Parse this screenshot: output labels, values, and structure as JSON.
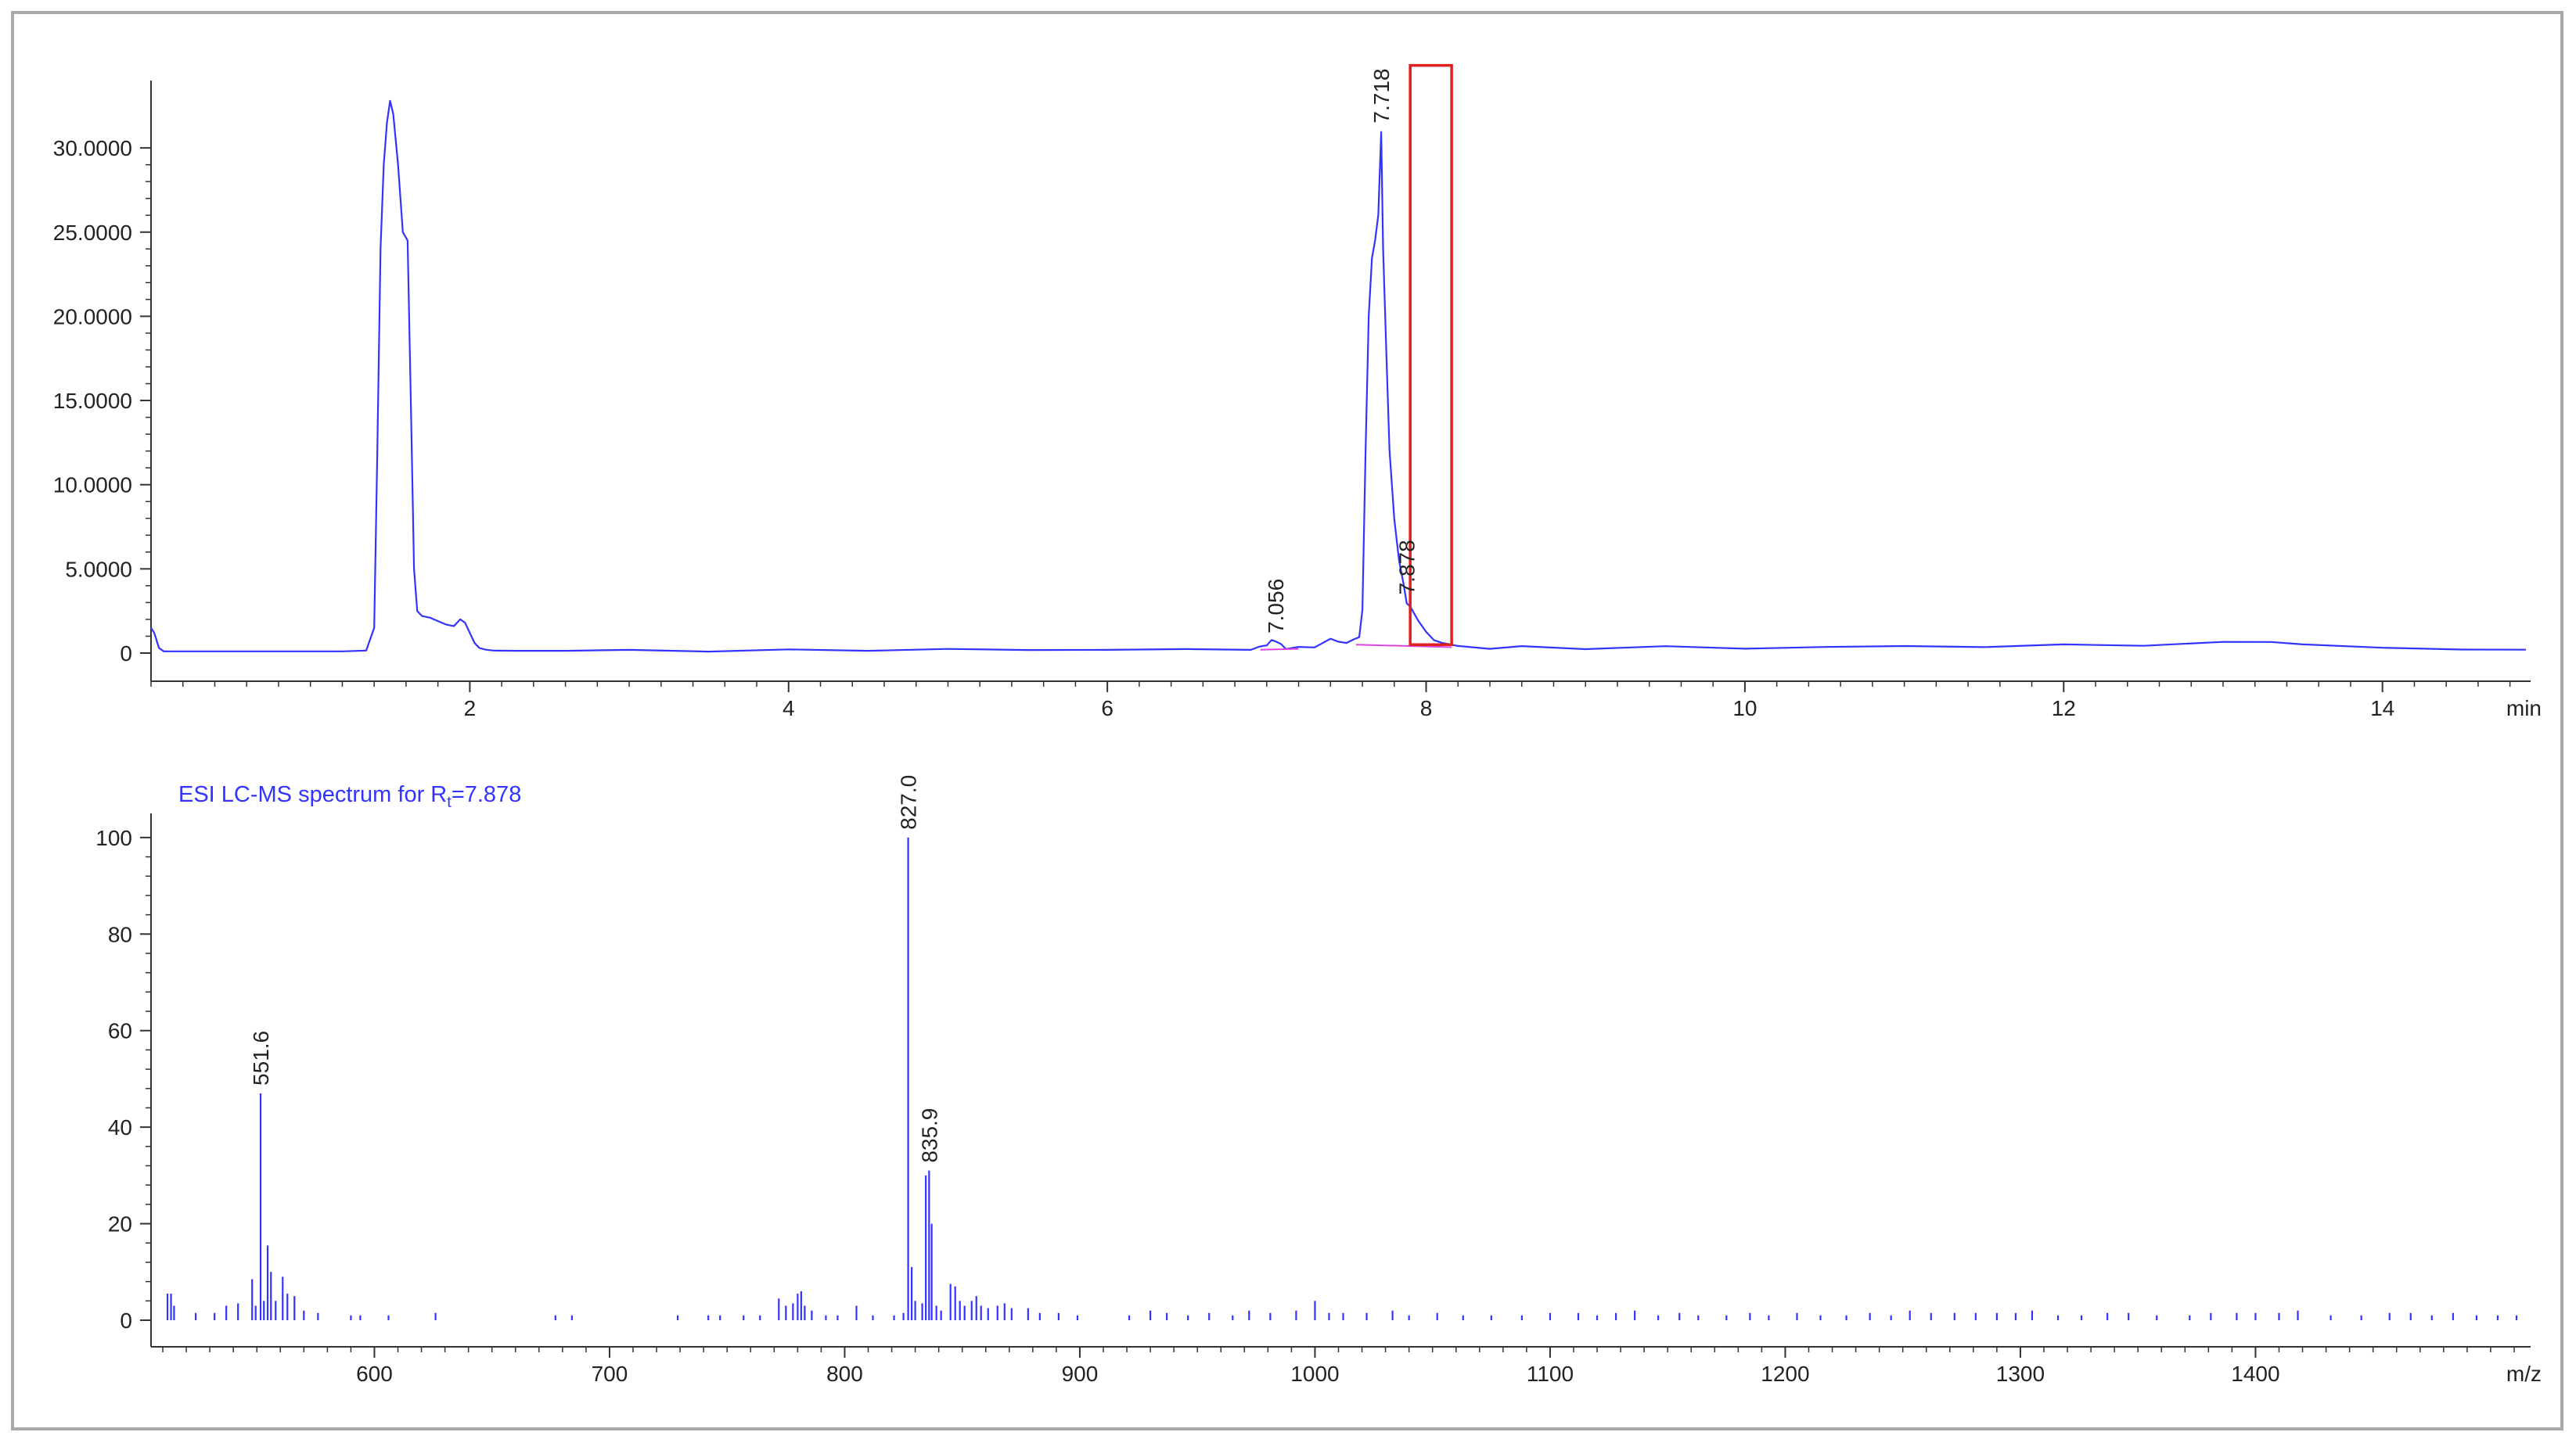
{
  "chart_data": [
    {
      "type": "line",
      "title": "",
      "xlabel": "min",
      "ylabel": "",
      "xlim": [
        0,
        14.9
      ],
      "ylim": [
        0,
        34
      ],
      "x_ticks": [
        2,
        4,
        6,
        8,
        10,
        12,
        14
      ],
      "x_tick_labels": [
        "2",
        "4",
        "6",
        "8",
        "10",
        "12",
        "14"
      ],
      "y_ticks": [
        0,
        5,
        10,
        15,
        20,
        25,
        30
      ],
      "y_tick_labels": [
        "0",
        "5.0000",
        "10.0000",
        "15.0000",
        "20.0000",
        "25.0000",
        "30.0000"
      ],
      "grid": false,
      "colors": {
        "trace": "#3333ff",
        "baseline": "#dd44dd",
        "highlight_box": "#e02020"
      },
      "series": [
        {
          "x": [
            0.0,
            0.02,
            0.05,
            0.08,
            0.2,
            0.5,
            0.8,
            1.0,
            1.2,
            1.35,
            1.4,
            1.42,
            1.44,
            1.46,
            1.48,
            1.5,
            1.52,
            1.55,
            1.58,
            1.61,
            1.63,
            1.65,
            1.67,
            1.7,
            1.75,
            1.8,
            1.85,
            1.9,
            1.94,
            1.97,
            2.0,
            2.03,
            2.06,
            2.1,
            2.15,
            2.3,
            2.6,
            3.0,
            3.5,
            4.0,
            4.5,
            5.0,
            5.5,
            6.0,
            6.5,
            6.9,
            6.95,
            6.98,
            7.0,
            7.03,
            7.056,
            7.09,
            7.12,
            7.2,
            7.3,
            7.4,
            7.45,
            7.5,
            7.55,
            7.58,
            7.6,
            7.62,
            7.64,
            7.66,
            7.68,
            7.7,
            7.718,
            7.73,
            7.75,
            7.77,
            7.8,
            7.83,
            7.86,
            7.878,
            7.9,
            7.95,
            8.0,
            8.05,
            8.1,
            8.2,
            8.4,
            8.6,
            9.0,
            9.5,
            10.0,
            10.5,
            11.0,
            11.5,
            12.0,
            12.5,
            13.0,
            13.3,
            13.5,
            14.0,
            14.5,
            14.9
          ],
          "y": [
            1.5,
            1.2,
            0.3,
            0.1,
            0.1,
            0.1,
            0.1,
            0.1,
            0.1,
            0.15,
            1.5,
            12.0,
            24.0,
            29.0,
            31.5,
            32.8,
            32.0,
            29.0,
            25.0,
            24.5,
            15.0,
            5.0,
            2.5,
            2.2,
            2.1,
            1.9,
            1.7,
            1.6,
            2.0,
            1.8,
            1.2,
            0.6,
            0.3,
            0.2,
            0.15,
            0.15,
            0.15,
            0.15,
            0.15,
            0.15,
            0.2,
            0.2,
            0.2,
            0.2,
            0.2,
            0.25,
            0.3,
            0.5,
            0.4,
            0.8,
            0.7,
            0.5,
            0.3,
            0.3,
            0.4,
            0.8,
            0.7,
            0.6,
            0.8,
            1.0,
            2.5,
            12.0,
            20.0,
            23.5,
            24.5,
            26.0,
            31.0,
            24.0,
            18.0,
            12.0,
            8.0,
            5.5,
            4.0,
            3.0,
            2.7,
            2.0,
            1.2,
            0.8,
            0.6,
            0.4,
            0.3,
            0.35,
            0.3,
            0.35,
            0.3,
            0.35,
            0.4,
            0.4,
            0.45,
            0.5,
            0.6,
            0.7,
            0.5,
            0.3,
            0.25,
            0.2
          ]
        }
      ],
      "annotations": [
        {
          "text": "7.056",
          "x": 7.056,
          "y": 0.7
        },
        {
          "text": "7.718",
          "x": 7.718,
          "y": 31.0
        },
        {
          "text": "7.878",
          "x": 7.878,
          "y": 3.0
        }
      ],
      "highlight_region": {
        "x": [
          7.9,
          8.16
        ],
        "y": [
          0.5,
          34.9
        ]
      }
    },
    {
      "type": "bar",
      "title_main": "ESI LC-MS spectrum for R",
      "title_sub": "t",
      "title_tail": "=7.878",
      "xlabel": "m/z",
      "ylabel": "",
      "xlim": [
        505,
        1515
      ],
      "ylim": [
        0,
        105
      ],
      "x_ticks": [
        600,
        700,
        800,
        900,
        1000,
        1100,
        1200,
        1300,
        1400
      ],
      "x_tick_labels": [
        "600",
        "700",
        "800",
        "900",
        "1000",
        "1100",
        "1200",
        "1300",
        "1400"
      ],
      "y_ticks": [
        0,
        20,
        40,
        60,
        80,
        100
      ],
      "y_tick_labels": [
        "0",
        "20",
        "40",
        "60",
        "80",
        "100"
      ],
      "grid": false,
      "colors": {
        "bars": "#3333ff",
        "title": "#3333ff"
      },
      "peaks": [
        {
          "mz": 512.0,
          "i": 5.5
        },
        {
          "mz": 513.5,
          "i": 5.5
        },
        {
          "mz": 514.8,
          "i": 3.0
        },
        {
          "mz": 524.0,
          "i": 1.5
        },
        {
          "mz": 532.0,
          "i": 1.5
        },
        {
          "mz": 537.0,
          "i": 3.0
        },
        {
          "mz": 542.0,
          "i": 3.5
        },
        {
          "mz": 548.0,
          "i": 8.5
        },
        {
          "mz": 549.5,
          "i": 3.0
        },
        {
          "mz": 551.6,
          "i": 47.0
        },
        {
          "mz": 553.0,
          "i": 4.0
        },
        {
          "mz": 554.6,
          "i": 15.5
        },
        {
          "mz": 556.0,
          "i": 10.0
        },
        {
          "mz": 558.0,
          "i": 4.0
        },
        {
          "mz": 561.0,
          "i": 9.0
        },
        {
          "mz": 563.0,
          "i": 5.5
        },
        {
          "mz": 566.0,
          "i": 5.0
        },
        {
          "mz": 570.0,
          "i": 2.0
        },
        {
          "mz": 576.0,
          "i": 1.5
        },
        {
          "mz": 590.0,
          "i": 1.0
        },
        {
          "mz": 594.0,
          "i": 1.0
        },
        {
          "mz": 606.0,
          "i": 1.0
        },
        {
          "mz": 626.0,
          "i": 1.5
        },
        {
          "mz": 677.0,
          "i": 1.0
        },
        {
          "mz": 684.0,
          "i": 1.0
        },
        {
          "mz": 729.0,
          "i": 1.0
        },
        {
          "mz": 742.0,
          "i": 1.0
        },
        {
          "mz": 747.0,
          "i": 1.0
        },
        {
          "mz": 757.0,
          "i": 1.0
        },
        {
          "mz": 764.0,
          "i": 1.0
        },
        {
          "mz": 772.0,
          "i": 4.5
        },
        {
          "mz": 775.0,
          "i": 3.0
        },
        {
          "mz": 778.0,
          "i": 3.5
        },
        {
          "mz": 780.0,
          "i": 5.5
        },
        {
          "mz": 781.5,
          "i": 6.0
        },
        {
          "mz": 783.0,
          "i": 3.0
        },
        {
          "mz": 786.0,
          "i": 2.0
        },
        {
          "mz": 792.0,
          "i": 1.0
        },
        {
          "mz": 797.0,
          "i": 1.0
        },
        {
          "mz": 805.0,
          "i": 3.0
        },
        {
          "mz": 812.0,
          "i": 1.0
        },
        {
          "mz": 821.0,
          "i": 1.0
        },
        {
          "mz": 825.0,
          "i": 1.5
        },
        {
          "mz": 827.0,
          "i": 100.0
        },
        {
          "mz": 828.5,
          "i": 11.0
        },
        {
          "mz": 830.0,
          "i": 4.0
        },
        {
          "mz": 833.0,
          "i": 3.5
        },
        {
          "mz": 834.5,
          "i": 30.0
        },
        {
          "mz": 835.9,
          "i": 31.0
        },
        {
          "mz": 837.0,
          "i": 20.0
        },
        {
          "mz": 839.0,
          "i": 3.0
        },
        {
          "mz": 841.0,
          "i": 2.0
        },
        {
          "mz": 845.0,
          "i": 7.5
        },
        {
          "mz": 847.0,
          "i": 7.0
        },
        {
          "mz": 849.0,
          "i": 4.0
        },
        {
          "mz": 851.0,
          "i": 3.0
        },
        {
          "mz": 854.0,
          "i": 4.0
        },
        {
          "mz": 856.0,
          "i": 5.0
        },
        {
          "mz": 858.0,
          "i": 3.0
        },
        {
          "mz": 861.0,
          "i": 2.5
        },
        {
          "mz": 865.0,
          "i": 3.0
        },
        {
          "mz": 868.0,
          "i": 3.5
        },
        {
          "mz": 871.0,
          "i": 2.5
        },
        {
          "mz": 878.0,
          "i": 2.5
        },
        {
          "mz": 883.0,
          "i": 1.5
        },
        {
          "mz": 891.0,
          "i": 1.5
        },
        {
          "mz": 899.0,
          "i": 1.0
        },
        {
          "mz": 921.0,
          "i": 1.0
        },
        {
          "mz": 930.0,
          "i": 2.0
        },
        {
          "mz": 937.0,
          "i": 1.5
        },
        {
          "mz": 946.0,
          "i": 1.0
        },
        {
          "mz": 955.0,
          "i": 1.5
        },
        {
          "mz": 965.0,
          "i": 1.0
        },
        {
          "mz": 972.0,
          "i": 2.0
        },
        {
          "mz": 981.0,
          "i": 1.5
        },
        {
          "mz": 992.0,
          "i": 2.0
        },
        {
          "mz": 1000.0,
          "i": 4.0
        },
        {
          "mz": 1006.0,
          "i": 1.5
        },
        {
          "mz": 1012.0,
          "i": 1.5
        },
        {
          "mz": 1022.0,
          "i": 1.5
        },
        {
          "mz": 1033.0,
          "i": 2.0
        },
        {
          "mz": 1040.0,
          "i": 1.0
        },
        {
          "mz": 1052.0,
          "i": 1.5
        },
        {
          "mz": 1063.0,
          "i": 1.0
        },
        {
          "mz": 1075.0,
          "i": 1.0
        },
        {
          "mz": 1088.0,
          "i": 1.0
        },
        {
          "mz": 1100.0,
          "i": 1.5
        },
        {
          "mz": 1112.0,
          "i": 1.5
        },
        {
          "mz": 1120.0,
          "i": 1.0
        },
        {
          "mz": 1128.0,
          "i": 1.5
        },
        {
          "mz": 1136.0,
          "i": 2.0
        },
        {
          "mz": 1146.0,
          "i": 1.0
        },
        {
          "mz": 1155.0,
          "i": 1.5
        },
        {
          "mz": 1163.0,
          "i": 1.0
        },
        {
          "mz": 1175.0,
          "i": 1.0
        },
        {
          "mz": 1185.0,
          "i": 1.5
        },
        {
          "mz": 1193.0,
          "i": 1.0
        },
        {
          "mz": 1205.0,
          "i": 1.5
        },
        {
          "mz": 1215.0,
          "i": 1.0
        },
        {
          "mz": 1226.0,
          "i": 1.0
        },
        {
          "mz": 1236.0,
          "i": 1.5
        },
        {
          "mz": 1245.0,
          "i": 1.0
        },
        {
          "mz": 1253.0,
          "i": 2.0
        },
        {
          "mz": 1262.0,
          "i": 1.5
        },
        {
          "mz": 1272.0,
          "i": 1.5
        },
        {
          "mz": 1281.0,
          "i": 1.5
        },
        {
          "mz": 1290.0,
          "i": 1.5
        },
        {
          "mz": 1298.0,
          "i": 1.5
        },
        {
          "mz": 1305.0,
          "i": 2.0
        },
        {
          "mz": 1316.0,
          "i": 1.0
        },
        {
          "mz": 1326.0,
          "i": 1.0
        },
        {
          "mz": 1337.0,
          "i": 1.5
        },
        {
          "mz": 1346.0,
          "i": 1.5
        },
        {
          "mz": 1358.0,
          "i": 1.0
        },
        {
          "mz": 1372.0,
          "i": 1.0
        },
        {
          "mz": 1381.0,
          "i": 1.5
        },
        {
          "mz": 1392.0,
          "i": 1.5
        },
        {
          "mz": 1400.0,
          "i": 1.5
        },
        {
          "mz": 1410.0,
          "i": 1.5
        },
        {
          "mz": 1418.0,
          "i": 2.0
        },
        {
          "mz": 1432.0,
          "i": 1.0
        },
        {
          "mz": 1445.0,
          "i": 1.0
        },
        {
          "mz": 1457.0,
          "i": 1.5
        },
        {
          "mz": 1466.0,
          "i": 1.5
        },
        {
          "mz": 1475.0,
          "i": 1.0
        },
        {
          "mz": 1484.0,
          "i": 1.5
        },
        {
          "mz": 1494.0,
          "i": 1.0
        },
        {
          "mz": 1503.0,
          "i": 1.0
        },
        {
          "mz": 1511.0,
          "i": 1.0
        }
      ],
      "annotations": [
        {
          "text": "551.6",
          "x": 551.6,
          "y": 47.0
        },
        {
          "text": "827.0",
          "x": 827.0,
          "y": 100.0
        },
        {
          "text": "835.9",
          "x": 835.9,
          "y": 31.0
        }
      ]
    }
  ]
}
